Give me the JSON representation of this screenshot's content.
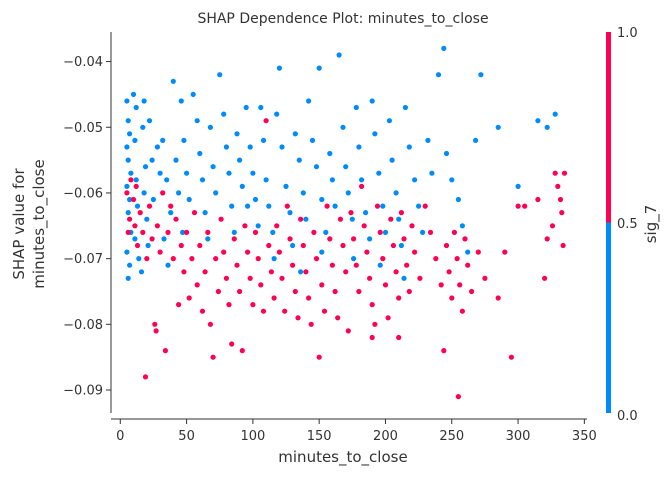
{
  "chart_data": {
    "type": "scatter",
    "title": "SHAP Dependence Plot: minutes_to_close",
    "xlabel": "minutes_to_close",
    "ylabel_lines": [
      "SHAP value for",
      "minutes_to_close"
    ],
    "xlim": [
      -7,
      352
    ],
    "ylim": [
      -0.0935,
      -0.0355
    ],
    "x_ticks": [
      0,
      50,
      100,
      150,
      200,
      250,
      300,
      350
    ],
    "y_ticks": [
      -0.09,
      -0.08,
      -0.07,
      -0.06,
      -0.05,
      -0.04
    ],
    "y_tick_labels": [
      "−0.09",
      "−0.08",
      "−0.07",
      "−0.06",
      "−0.05",
      "−0.04"
    ],
    "grid": false,
    "colorbar": {
      "label": "sig_7",
      "ticks": [
        0.0,
        0.5,
        1.0
      ],
      "tick_labels": [
        "0.0",
        "0.5",
        "1.0"
      ],
      "low_color": "#008bfb",
      "high_color": "#ff0052"
    },
    "series": [
      {
        "color_value": 0,
        "color": "#008bfb",
        "points": [
          [
            5,
            -0.046
          ],
          [
            6,
            -0.049
          ],
          [
            7,
            -0.051
          ],
          [
            5,
            -0.053
          ],
          [
            6,
            -0.055
          ],
          [
            8,
            -0.057
          ],
          [
            5,
            -0.059
          ],
          [
            7,
            -0.061
          ],
          [
            6,
            -0.063
          ],
          [
            8,
            -0.066
          ],
          [
            5,
            -0.069
          ],
          [
            7,
            -0.071
          ],
          [
            6,
            -0.073
          ],
          [
            10,
            -0.045
          ],
          [
            12,
            -0.047
          ],
          [
            11,
            -0.052
          ],
          [
            12,
            -0.058
          ],
          [
            13,
            -0.062
          ],
          [
            11,
            -0.067
          ],
          [
            14,
            -0.07
          ],
          [
            18,
            -0.046
          ],
          [
            17,
            -0.05
          ],
          [
            19,
            -0.056
          ],
          [
            18,
            -0.06
          ],
          [
            20,
            -0.064
          ],
          [
            21,
            -0.068
          ],
          [
            16,
            -0.072
          ],
          [
            22,
            -0.049
          ],
          [
            24,
            -0.055
          ],
          [
            25,
            -0.061
          ],
          [
            28,
            -0.053
          ],
          [
            30,
            -0.057
          ],
          [
            32,
            -0.052
          ],
          [
            35,
            -0.058
          ],
          [
            38,
            -0.063
          ],
          [
            33,
            -0.067
          ],
          [
            36,
            -0.071
          ],
          [
            40,
            -0.043
          ],
          [
            42,
            -0.055
          ],
          [
            44,
            -0.06
          ],
          [
            46,
            -0.046
          ],
          [
            48,
            -0.052
          ],
          [
            50,
            -0.057
          ],
          [
            52,
            -0.061
          ],
          [
            47,
            -0.066
          ],
          [
            55,
            -0.045
          ],
          [
            58,
            -0.049
          ],
          [
            60,
            -0.054
          ],
          [
            62,
            -0.058
          ],
          [
            64,
            -0.063
          ],
          [
            66,
            -0.067
          ],
          [
            68,
            -0.05
          ],
          [
            70,
            -0.056
          ],
          [
            72,
            -0.06
          ],
          [
            75,
            -0.042
          ],
          [
            78,
            -0.048
          ],
          [
            80,
            -0.053
          ],
          [
            82,
            -0.057
          ],
          [
            84,
            -0.062
          ],
          [
            86,
            -0.066
          ],
          [
            88,
            -0.051
          ],
          [
            90,
            -0.055
          ],
          [
            92,
            -0.059
          ],
          [
            95,
            -0.047
          ],
          [
            98,
            -0.053
          ],
          [
            100,
            -0.057
          ],
          [
            102,
            -0.061
          ],
          [
            104,
            -0.065
          ],
          [
            106,
            -0.047
          ],
          [
            108,
            -0.052
          ],
          [
            110,
            -0.058
          ],
          [
            112,
            -0.062
          ],
          [
            115,
            -0.066
          ],
          [
            118,
            -0.048
          ],
          [
            120,
            -0.041
          ],
          [
            122,
            -0.053
          ],
          [
            125,
            -0.059
          ],
          [
            128,
            -0.063
          ],
          [
            130,
            -0.068
          ],
          [
            132,
            -0.051
          ],
          [
            135,
            -0.055
          ],
          [
            138,
            -0.06
          ],
          [
            140,
            -0.064
          ],
          [
            142,
            -0.046
          ],
          [
            145,
            -0.052
          ],
          [
            148,
            -0.056
          ],
          [
            150,
            -0.041
          ],
          [
            152,
            -0.061
          ],
          [
            155,
            -0.066
          ],
          [
            158,
            -0.054
          ],
          [
            160,
            -0.058
          ],
          [
            162,
            -0.062
          ],
          [
            165,
            -0.039
          ],
          [
            168,
            -0.05
          ],
          [
            170,
            -0.056
          ],
          [
            172,
            -0.06
          ],
          [
            175,
            -0.064
          ],
          [
            178,
            -0.047
          ],
          [
            180,
            -0.053
          ],
          [
            182,
            -0.058
          ],
          [
            185,
            -0.063
          ],
          [
            188,
            -0.067
          ],
          [
            190,
            -0.046
          ],
          [
            192,
            -0.051
          ],
          [
            195,
            -0.057
          ],
          [
            198,
            -0.062
          ],
          [
            200,
            -0.066
          ],
          [
            203,
            -0.049
          ],
          [
            205,
            -0.055
          ],
          [
            208,
            -0.06
          ],
          [
            210,
            -0.064
          ],
          [
            212,
            -0.068
          ],
          [
            215,
            -0.047
          ],
          [
            218,
            -0.053
          ],
          [
            222,
            -0.058
          ],
          [
            225,
            -0.062
          ],
          [
            228,
            -0.066
          ],
          [
            232,
            -0.052
          ],
          [
            235,
            -0.057
          ],
          [
            240,
            -0.042
          ],
          [
            244,
            -0.038
          ],
          [
            246,
            -0.054
          ],
          [
            250,
            -0.058
          ],
          [
            255,
            -0.061
          ],
          [
            258,
            -0.065
          ],
          [
            262,
            -0.069
          ],
          [
            268,
            -0.052
          ],
          [
            272,
            -0.042
          ],
          [
            285,
            -0.05
          ],
          [
            300,
            -0.059
          ],
          [
            315,
            -0.049
          ],
          [
            322,
            -0.05
          ],
          [
            328,
            -0.048
          ],
          [
            96,
            -0.062
          ],
          [
            116,
            -0.07
          ],
          [
            136,
            -0.072
          ],
          [
            152,
            -0.069
          ],
          [
            176,
            -0.07
          ],
          [
            196,
            -0.071
          ],
          [
            214,
            -0.073
          ]
        ]
      },
      {
        "color_value": 1,
        "color": "#ff0052",
        "points": [
          [
            5,
            -0.06
          ],
          [
            7,
            -0.064
          ],
          [
            6,
            -0.066
          ],
          [
            8,
            -0.058
          ],
          [
            10,
            -0.061
          ],
          [
            11,
            -0.065
          ],
          [
            13,
            -0.068
          ],
          [
            12,
            -0.059
          ],
          [
            15,
            -0.063
          ],
          [
            17,
            -0.066
          ],
          [
            19,
            -0.088
          ],
          [
            20,
            -0.07
          ],
          [
            22,
            -0.062
          ],
          [
            24,
            -0.067
          ],
          [
            26,
            -0.08
          ],
          [
            27,
            -0.081
          ],
          [
            28,
            -0.065
          ],
          [
            30,
            -0.069
          ],
          [
            32,
            -0.06
          ],
          [
            34,
            -0.084
          ],
          [
            36,
            -0.066
          ],
          [
            38,
            -0.062
          ],
          [
            40,
            -0.07
          ],
          [
            42,
            -0.064
          ],
          [
            44,
            -0.077
          ],
          [
            46,
            -0.068
          ],
          [
            48,
            -0.072
          ],
          [
            50,
            -0.066
          ],
          [
            52,
            -0.076
          ],
          [
            54,
            -0.07
          ],
          [
            56,
            -0.063
          ],
          [
            58,
            -0.074
          ],
          [
            60,
            -0.068
          ],
          [
            62,
            -0.078
          ],
          [
            64,
            -0.072
          ],
          [
            66,
            -0.066
          ],
          [
            68,
            -0.08
          ],
          [
            70,
            -0.085
          ],
          [
            72,
            -0.07
          ],
          [
            74,
            -0.075
          ],
          [
            76,
            -0.064
          ],
          [
            78,
            -0.069
          ],
          [
            80,
            -0.073
          ],
          [
            82,
            -0.077
          ],
          [
            84,
            -0.083
          ],
          [
            86,
            -0.067
          ],
          [
            88,
            -0.071
          ],
          [
            90,
            -0.075
          ],
          [
            92,
            -0.084
          ],
          [
            94,
            -0.065
          ],
          [
            96,
            -0.069
          ],
          [
            98,
            -0.073
          ],
          [
            100,
            -0.077
          ],
          [
            102,
            -0.066
          ],
          [
            104,
            -0.07
          ],
          [
            106,
            -0.074
          ],
          [
            108,
            -0.078
          ],
          [
            110,
            -0.049
          ],
          [
            112,
            -0.068
          ],
          [
            114,
            -0.072
          ],
          [
            116,
            -0.076
          ],
          [
            118,
            -0.065
          ],
          [
            120,
            -0.069
          ],
          [
            122,
            -0.073
          ],
          [
            124,
            -0.078
          ],
          [
            126,
            -0.062
          ],
          [
            128,
            -0.067
          ],
          [
            130,
            -0.071
          ],
          [
            132,
            -0.075
          ],
          [
            134,
            -0.079
          ],
          [
            136,
            -0.064
          ],
          [
            138,
            -0.068
          ],
          [
            140,
            -0.072
          ],
          [
            142,
            -0.076
          ],
          [
            144,
            -0.08
          ],
          [
            146,
            -0.066
          ],
          [
            148,
            -0.07
          ],
          [
            150,
            -0.085
          ],
          [
            152,
            -0.074
          ],
          [
            154,
            -0.078
          ],
          [
            156,
            -0.062
          ],
          [
            158,
            -0.067
          ],
          [
            160,
            -0.071
          ],
          [
            162,
            -0.075
          ],
          [
            164,
            -0.079
          ],
          [
            166,
            -0.064
          ],
          [
            168,
            -0.068
          ],
          [
            170,
            -0.072
          ],
          [
            172,
            -0.081
          ],
          [
            174,
            -0.063
          ],
          [
            176,
            -0.067
          ],
          [
            178,
            -0.071
          ],
          [
            180,
            -0.075
          ],
          [
            182,
            -0.059
          ],
          [
            184,
            -0.065
          ],
          [
            186,
            -0.069
          ],
          [
            188,
            -0.073
          ],
          [
            190,
            -0.077
          ],
          [
            192,
            -0.08
          ],
          [
            194,
            -0.062
          ],
          [
            196,
            -0.066
          ],
          [
            198,
            -0.07
          ],
          [
            200,
            -0.074
          ],
          [
            202,
            -0.079
          ],
          [
            204,
            -0.064
          ],
          [
            206,
            -0.068
          ],
          [
            208,
            -0.072
          ],
          [
            210,
            -0.076
          ],
          [
            212,
            -0.063
          ],
          [
            214,
            -0.067
          ],
          [
            216,
            -0.071
          ],
          [
            218,
            -0.075
          ],
          [
            220,
            -0.065
          ],
          [
            222,
            -0.069
          ],
          [
            226,
            -0.073
          ],
          [
            230,
            -0.062
          ],
          [
            234,
            -0.066
          ],
          [
            238,
            -0.07
          ],
          [
            242,
            -0.074
          ],
          [
            244,
            -0.084
          ],
          [
            246,
            -0.068
          ],
          [
            248,
            -0.072
          ],
          [
            250,
            -0.076
          ],
          [
            252,
            -0.066
          ],
          [
            254,
            -0.07
          ],
          [
            255,
            -0.091
          ],
          [
            256,
            -0.074
          ],
          [
            258,
            -0.078
          ],
          [
            260,
            -0.067
          ],
          [
            262,
            -0.071
          ],
          [
            265,
            -0.075
          ],
          [
            270,
            -0.069
          ],
          [
            275,
            -0.073
          ],
          [
            285,
            -0.076
          ],
          [
            290,
            -0.069
          ],
          [
            295,
            -0.085
          ],
          [
            300,
            -0.062
          ],
          [
            305,
            -0.062
          ],
          [
            315,
            -0.061
          ],
          [
            320,
            -0.073
          ],
          [
            322,
            -0.067
          ],
          [
            326,
            -0.065
          ],
          [
            328,
            -0.057
          ],
          [
            330,
            -0.059
          ],
          [
            332,
            -0.061
          ],
          [
            333,
            -0.063
          ],
          [
            334,
            -0.068
          ],
          [
            335,
            -0.057
          ],
          [
            210,
            -0.082
          ],
          [
            190,
            -0.082
          ]
        ]
      }
    ]
  }
}
